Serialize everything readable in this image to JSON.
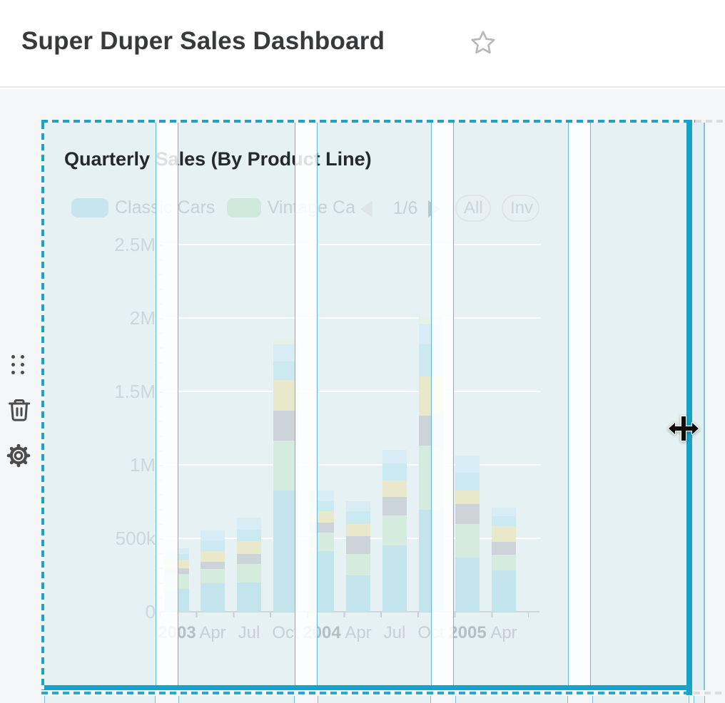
{
  "header": {
    "title": "Super Duper Sales Dashboard",
    "star_icon": "star-outline"
  },
  "side_toolbar": {
    "items": [
      {
        "icon": "drag-handle-icon"
      },
      {
        "icon": "trash-icon"
      },
      {
        "icon": "settings-gear-icon"
      }
    ]
  },
  "widget": {
    "title": "Quarterly Sales (By Product Line)",
    "state": "selected-being-moved",
    "legend": [
      {
        "label": "Classic Cars",
        "swatch_color": "#c6e5ee"
      },
      {
        "label": "Vintage Ca",
        "swatch_color": "#cfe9da"
      }
    ],
    "pager": {
      "text": "1/6",
      "prev_enabled": false,
      "next_enabled": true
    },
    "buttons": [
      {
        "label": "All"
      },
      {
        "label": "Inv"
      }
    ]
  },
  "chart_data": {
    "type": "bar",
    "stacked": true,
    "title": "Quarterly Sales (By Product Line)",
    "xlabel": "",
    "ylabel": "",
    "ylim": [
      0,
      2500000
    ],
    "grid": true,
    "legend_position": "top",
    "y_ticks": [
      {
        "label": "0",
        "value": 0
      },
      {
        "label": "500k",
        "value": 500000
      },
      {
        "label": "1M",
        "value": 1000000
      },
      {
        "label": "1.5M",
        "value": 1500000
      },
      {
        "label": "2M",
        "value": 2000000
      },
      {
        "label": "2.5M",
        "value": 2500000
      }
    ],
    "categories": [
      {
        "label": "2003",
        "bold": true
      },
      {
        "label": "Apr",
        "bold": false
      },
      {
        "label": "Jul",
        "bold": false
      },
      {
        "label": "Oct",
        "bold": false
      },
      {
        "label": "2004",
        "bold": true
      },
      {
        "label": "Apr",
        "bold": false
      },
      {
        "label": "Jul",
        "bold": false
      },
      {
        "label": "Oct",
        "bold": false
      },
      {
        "label": "2005",
        "bold": true
      },
      {
        "label": "Apr",
        "bold": false
      }
    ],
    "series": [
      {
        "name": "Classic Cars",
        "color": "#c3e3ed",
        "values": [
          155000,
          194000,
          199000,
          825000,
          413000,
          248000,
          451000,
          694000,
          369000,
          282000
        ]
      },
      {
        "name": "Vintage Ca (legend truncated)",
        "color": "#d5ebdd",
        "values": [
          102000,
          97000,
          126000,
          340000,
          126000,
          146000,
          204000,
          437000,
          228000,
          107000
        ]
      },
      {
        "name": "unlabeled-series-gray",
        "color": "#ccd3d9",
        "values": [
          39000,
          49000,
          68000,
          204000,
          68000,
          121000,
          126000,
          204000,
          136000,
          87000
        ]
      },
      {
        "name": "unlabeled-series-cream",
        "color": "#eae8cb",
        "values": [
          58000,
          73000,
          87000,
          209000,
          78000,
          83000,
          112000,
          267000,
          92000,
          107000
        ]
      },
      {
        "name": "unlabeled-series-cyan",
        "color": "#cbe9f0",
        "values": [
          39000,
          73000,
          78000,
          126000,
          68000,
          87000,
          117000,
          218000,
          121000,
          68000
        ]
      },
      {
        "name": "unlabeled-series-paleblue",
        "color": "#d8ecf5",
        "values": [
          39000,
          68000,
          83000,
          117000,
          73000,
          68000,
          92000,
          136000,
          117000,
          58000
        ]
      },
      {
        "name": "unlabeled-series-palegreen",
        "color": "#e3f1e7",
        "values": [
          0,
          0,
          0,
          34000,
          0,
          0,
          0,
          58000,
          0,
          0
        ]
      }
    ]
  },
  "colors": {
    "accent_teal": "#17a3c9",
    "guide_line_teal": "#74c0d4",
    "column_tint": "#e6f1f4",
    "canvas_gray": "#f5f6f7"
  }
}
